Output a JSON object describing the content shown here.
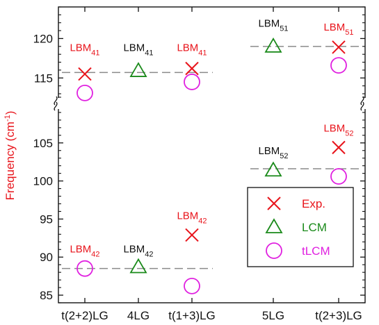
{
  "chart_data": {
    "type": "scatter",
    "ylabel": "Frequency (cm",
    "ylabel_sup": "-1",
    "ylabel_close": ")",
    "ylim_lower": [
      84,
      111
    ],
    "ylim_upper": [
      113,
      124
    ],
    "y_ticks": [
      85,
      90,
      95,
      100,
      105,
      115,
      120
    ],
    "axis_break": true,
    "categories": [
      "t(2+2)LG",
      "4LG",
      "t(1+3)LG",
      "5LG",
      "t(2+3)LG"
    ],
    "series": [
      {
        "name": "Exp.",
        "marker": "x",
        "color": "#e8141b",
        "points": [
          {
            "category": "t(2+2)LG",
            "y": 115.5
          },
          {
            "category": "t(1+3)LG",
            "y": 116.2
          },
          {
            "category": "t(2+3)LG",
            "y": 118.9
          },
          {
            "category": "t(2+3)LG",
            "y": 104.4
          },
          {
            "category": "t(1+3)LG",
            "y": 92.9
          }
        ]
      },
      {
        "name": "LCM",
        "marker": "triangle",
        "color": "#1a8a1a",
        "points": [
          {
            "category": "4LG",
            "y": 115.9
          },
          {
            "category": "5LG",
            "y": 119.0
          },
          {
            "category": "5LG",
            "y": 101.4
          },
          {
            "category": "4LG",
            "y": 88.7
          }
        ]
      },
      {
        "name": "tLCM",
        "marker": "circle",
        "color": "#e020e0",
        "points": [
          {
            "category": "t(2+2)LG",
            "y": 113.1
          },
          {
            "category": "t(1+3)LG",
            "y": 114.5
          },
          {
            "category": "t(2+3)LG",
            "y": 116.6
          },
          {
            "category": "t(2+3)LG",
            "y": 100.6
          },
          {
            "category": "t(2+2)LG",
            "y": 88.5
          },
          {
            "category": "t(1+3)LG",
            "y": 86.2
          }
        ]
      }
    ],
    "reference_lines": [
      {
        "y": 115.7,
        "from": "t(2+2)LG",
        "to": "t(1+3)LG"
      },
      {
        "y": 119.0,
        "from": "5LG",
        "to": "t(2+3)LG"
      },
      {
        "y": 101.6,
        "from": "5LG",
        "to": "t(2+3)LG"
      },
      {
        "y": 88.5,
        "from": "t(2+2)LG",
        "to": "t(1+3)LG"
      }
    ],
    "annotations": [
      {
        "base": "LBM",
        "sub": "41",
        "category": "t(2+2)LG",
        "y": 118.4,
        "color": "#e8141b"
      },
      {
        "base": "LBM",
        "sub": "41",
        "category": "4LG",
        "y": 118.4,
        "color": "#111111"
      },
      {
        "base": "LBM",
        "sub": "41",
        "category": "t(1+3)LG",
        "y": 118.4,
        "color": "#e8141b"
      },
      {
        "base": "LBM",
        "sub": "51",
        "category": "5LG",
        "y": 121.5,
        "color": "#111111"
      },
      {
        "base": "LBM",
        "sub": "51",
        "category": "t(2+3)LG",
        "y": 121.0,
        "color": "#e8141b"
      },
      {
        "base": "LBM",
        "sub": "52",
        "category": "t(2+3)LG",
        "y": 106.5,
        "color": "#e8141b"
      },
      {
        "base": "LBM",
        "sub": "52",
        "category": "5LG",
        "y": 103.5,
        "color": "#111111"
      },
      {
        "base": "LBM",
        "sub": "42",
        "category": "t(1+3)LG",
        "y": 95.0,
        "color": "#e8141b"
      },
      {
        "base": "LBM",
        "sub": "42",
        "category": "t(2+2)LG",
        "y": 90.6,
        "color": "#e8141b"
      },
      {
        "base": "LBM",
        "sub": "42",
        "category": "4LG",
        "y": 90.6,
        "color": "#111111"
      }
    ],
    "legend": {
      "placement": "lower-right",
      "entries": [
        "Exp.",
        "LCM",
        "tLCM"
      ]
    },
    "grid": false
  }
}
